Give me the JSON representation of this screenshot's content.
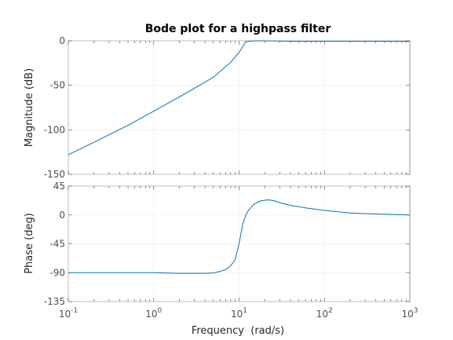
{
  "chart_data": [
    {
      "type": "line",
      "title": "Bode plot for a highpass filter",
      "xlabel": "",
      "ylabel": "Magnitude (dB)",
      "xscale": "log",
      "xlim": [
        0.1,
        1000
      ],
      "ylim": [
        -150,
        0
      ],
      "yticks": [
        0,
        -50,
        -100,
        -150
      ],
      "color": "#0072bd",
      "x": [
        0.1,
        0.2,
        0.5,
        1,
        2,
        5,
        8,
        10,
        12,
        15,
        20,
        50,
        100,
        1000
      ],
      "y": [
        -128,
        -114,
        -95,
        -79,
        -63,
        -41,
        -24,
        -13,
        -1,
        0,
        0,
        -0.5,
        -0.5,
        -0.5
      ]
    },
    {
      "type": "line",
      "title": "",
      "xlabel": "Frequency  (rad/s)",
      "ylabel": "Phase (deg)",
      "xscale": "log",
      "xlim": [
        0.1,
        1000
      ],
      "ylim": [
        -135,
        45
      ],
      "yticks": [
        45,
        0,
        -45,
        -90,
        -135
      ],
      "xticks": [
        {
          "base": "10",
          "exp": "-1",
          "value": 0.1
        },
        {
          "base": "10",
          "exp": "0",
          "value": 1
        },
        {
          "base": "10",
          "exp": "1",
          "value": 10
        },
        {
          "base": "10",
          "exp": "2",
          "value": 100
        },
        {
          "base": "10",
          "exp": "3",
          "value": 1000
        }
      ],
      "color": "#0072bd",
      "x": [
        0.1,
        0.3,
        1,
        2,
        4,
        5,
        6,
        7,
        8,
        9,
        10,
        11,
        12,
        13,
        15,
        18,
        22,
        26,
        30,
        40,
        60,
        100,
        200,
        500,
        1000
      ],
      "y": [
        -90,
        -90,
        -90,
        -91,
        -91,
        -90.5,
        -88,
        -85,
        -79,
        -70,
        -45,
        -15,
        0,
        8,
        17,
        22,
        23.5,
        22,
        19,
        15,
        11,
        7,
        3,
        1,
        0
      ]
    }
  ]
}
